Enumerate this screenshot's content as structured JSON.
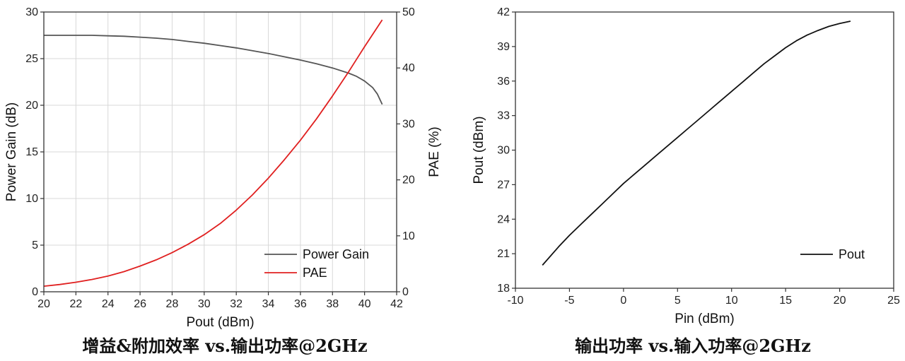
{
  "chart_data": [
    {
      "type": "line",
      "caption": "增益&附加效率 vs.输出功率@2GHz",
      "xlabel": "Pout (dBm)",
      "ylabel": "Power Gain (dB)",
      "y2label": "PAE (%)",
      "xlim": [
        20,
        42
      ],
      "ylim": [
        0,
        30
      ],
      "y2lim": [
        0,
        50
      ],
      "xticks": [
        "20",
        "22",
        "24",
        "26",
        "28",
        "30",
        "32",
        "34",
        "36",
        "38",
        "40",
        "42"
      ],
      "yticks": [
        "0",
        "5",
        "10",
        "15",
        "20",
        "25",
        "30"
      ],
      "y2ticks": [
        "0",
        "10",
        "20",
        "30",
        "40",
        "50"
      ],
      "grid": true,
      "legend": "bottom-right",
      "series": [
        {
          "name": "Power Gain",
          "axis": "left",
          "color": "#555555",
          "x": [
            20,
            21,
            22,
            23,
            24,
            25,
            26,
            27,
            28,
            29,
            30,
            31,
            32,
            33,
            34,
            35,
            36,
            37,
            38,
            39,
            39.5,
            40,
            40.5,
            40.8,
            41.1
          ],
          "y": [
            27.5,
            27.5,
            27.5,
            27.5,
            27.45,
            27.4,
            27.3,
            27.2,
            27.05,
            26.85,
            26.65,
            26.4,
            26.15,
            25.85,
            25.55,
            25.2,
            24.85,
            24.45,
            24.0,
            23.45,
            23.1,
            22.6,
            21.9,
            21.2,
            20.1
          ]
        },
        {
          "name": "PAE",
          "axis": "right",
          "color": "#e02020",
          "x": [
            20,
            21,
            22,
            23,
            24,
            25,
            26,
            27,
            28,
            29,
            30,
            31,
            32,
            33,
            34,
            35,
            36,
            37,
            38,
            39,
            40,
            41.1
          ],
          "y": [
            1.0,
            1.3,
            1.7,
            2.2,
            2.8,
            3.6,
            4.6,
            5.7,
            7.0,
            8.5,
            10.2,
            12.2,
            14.6,
            17.3,
            20.3,
            23.6,
            27.1,
            30.9,
            35.0,
            39.3,
            43.8,
            48.6
          ]
        }
      ]
    },
    {
      "type": "line",
      "caption": "输出功率 vs.输入功率@2GHz",
      "xlabel": "Pin (dBm)",
      "ylabel": "Pout (dBm)",
      "xlim": [
        -10,
        25
      ],
      "ylim": [
        18,
        42
      ],
      "xticks": [
        "-10",
        "-5",
        "0",
        "5",
        "10",
        "15",
        "20",
        "25"
      ],
      "yticks": [
        "18",
        "21",
        "24",
        "27",
        "30",
        "33",
        "36",
        "39",
        "42"
      ],
      "grid": false,
      "legend": "bottom-right",
      "series": [
        {
          "name": "Pout",
          "color": "#111111",
          "x": [
            -7.5,
            -6,
            -5,
            -4,
            -3,
            -2,
            -1,
            0,
            1,
            2,
            3,
            4,
            5,
            6,
            7,
            8,
            9,
            10,
            11,
            12,
            13,
            14,
            15,
            16,
            17,
            18,
            19,
            20,
            21
          ],
          "y": [
            20.0,
            21.6,
            22.6,
            23.5,
            24.4,
            25.3,
            26.2,
            27.1,
            27.9,
            28.7,
            29.5,
            30.3,
            31.1,
            31.9,
            32.7,
            33.5,
            34.3,
            35.1,
            35.9,
            36.7,
            37.5,
            38.2,
            38.9,
            39.5,
            40.0,
            40.4,
            40.75,
            41.0,
            41.2
          ]
        }
      ]
    }
  ]
}
